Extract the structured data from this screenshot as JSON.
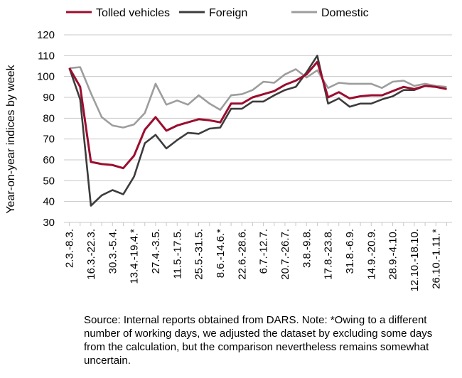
{
  "chart_data": {
    "type": "line",
    "title": "",
    "xlabel": "",
    "ylabel": "Year-on-year indices by week",
    "ylim": [
      30,
      120
    ],
    "yticks": [
      30,
      40,
      50,
      60,
      70,
      80,
      90,
      100,
      110,
      120
    ],
    "grid": "horizontal",
    "legend": "top",
    "x": [
      "2.3.-8.3.",
      "9.3.-15.3.",
      "16.3.-22.3.",
      "23.3.-29.3.",
      "30.3.-5.4.",
      "6.4.-12.4.",
      "13.4.-19.4.*",
      "20.4.-26.4.",
      "27.4.-3.5.",
      "4.5.-10.5.",
      "11.5.-17.5.",
      "18.5.-24.5.",
      "25.5.-31.5.",
      "1.6.-7.6.",
      "8.6.-14.6.*",
      "15.6.-21.6.",
      "22.6.-28.6.",
      "29.6.-5.7.",
      "6.7.-12.7.",
      "13.7.-19.7.",
      "20.7.-26.7.",
      "27.7.-2.8.",
      "3.8.-9.8.",
      "10.8.-16.8.",
      "17.8.-23.8.",
      "24.8.-30.8.",
      "31.8.-6.9.",
      "7.9.-13.9.",
      "14.9.-20.9.",
      "21.9.-27.9.",
      "28.9.-4.10.",
      "5.10.-11.10.",
      "12.10.-18.10.",
      "19.10.-25.10.",
      "26.10.-1.11.*",
      "2.11.-8.11."
    ],
    "xticks_shown": [
      "2.3.-8.3.",
      "16.3.-22.3.",
      "30.3.-5.4.",
      "13.4.-19.4.*",
      "27.4.-3.5.",
      "11.5.-17.5.",
      "25.5.-31.5.",
      "8.6.-14.6.*",
      "22.6.-28.6.",
      "6.7.-12.7.",
      "20.7.-26.7.",
      "3.8.-9.8.",
      "17.8.-23.8.",
      "31.8.-6.9.",
      "14.9.-20.9.",
      "28.9.-4.10.",
      "12.10.-18.10.",
      "26.10.-1.11.*"
    ],
    "series": [
      {
        "name": "Tolled vehicles",
        "color": "#9b0d2e",
        "values": [
          104,
          95,
          59,
          58,
          57.5,
          56,
          62,
          74.5,
          80.5,
          74,
          76.5,
          78,
          79.5,
          79,
          78,
          87,
          87,
          90,
          91.5,
          93,
          96,
          98,
          101,
          107,
          90,
          92.5,
          89.5,
          90.5,
          91,
          91,
          93,
          95,
          94,
          95.5,
          95,
          94
        ]
      },
      {
        "name": "Foreign",
        "color": "#3c3c3c",
        "values": [
          104,
          89,
          38,
          43,
          45.5,
          43.5,
          52,
          68,
          72,
          65.5,
          69.5,
          73,
          72.5,
          75,
          75.5,
          84.5,
          84.5,
          88,
          88,
          91,
          93.5,
          95,
          102,
          110,
          87,
          89.5,
          85.5,
          87,
          87,
          89,
          90.5,
          93.5,
          93.5,
          95.5,
          95,
          94
        ]
      },
      {
        "name": "Domestic",
        "color": "#9d9d9d",
        "values": [
          104,
          104.5,
          92,
          80.5,
          76.5,
          75.5,
          77,
          82.5,
          96.5,
          86.5,
          88.5,
          86.5,
          91,
          87,
          84,
          91,
          91.5,
          93.5,
          97.5,
          97,
          101,
          103.5,
          99.5,
          103,
          94.5,
          97,
          96.5,
          96.5,
          96.5,
          94.5,
          97.5,
          98,
          95.5,
          96.5,
          95.5,
          95
        ]
      }
    ]
  },
  "source_note": "Source: Internal reports obtained from DARS. Note: *Owing to a different number of working days, we adjusted the dataset by excluding some days from the calculation, but the comparison nevertheless remains somewhat uncertain."
}
